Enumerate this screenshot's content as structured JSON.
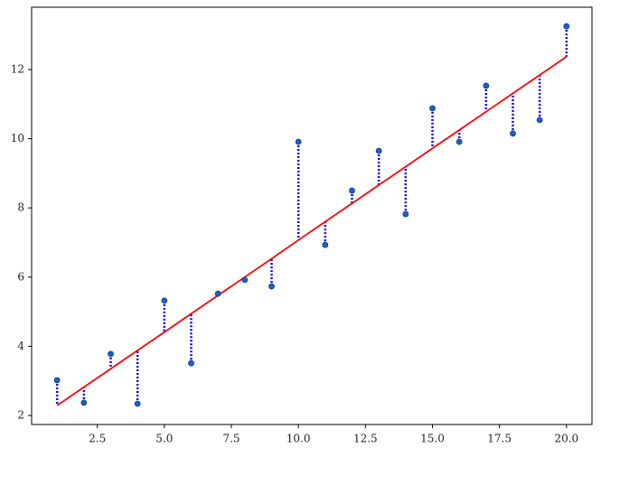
{
  "chart_data": {
    "type": "scatter",
    "x": [
      1,
      2,
      3,
      4,
      5,
      6,
      7,
      8,
      9,
      10,
      11,
      12,
      13,
      14,
      15,
      16,
      17,
      18,
      19,
      20
    ],
    "series": [
      {
        "color": "#1f5fbf",
        "values": [
          3.02,
          2.37,
          3.78,
          2.34,
          5.32,
          3.51,
          5.52,
          5.92,
          5.73,
          9.91,
          6.93,
          8.5,
          9.65,
          7.82,
          10.88,
          9.91,
          11.53,
          10.15,
          10.54,
          13.25
        ]
      },
      {
        "color": "#ff0000",
        "values": [
          2.29,
          2.82,
          3.35,
          3.88,
          4.41,
          4.94,
          5.47,
          6.0,
          6.53,
          7.07,
          7.6,
          8.13,
          8.66,
          9.19,
          9.72,
          10.25,
          10.78,
          11.31,
          11.84,
          12.37
        ]
      }
    ],
    "residual_color": "#0000ff",
    "xlim": [
      0.05,
      20.95
    ],
    "ylim": [
      1.74,
      13.8
    ],
    "xticks": [
      {
        "value": 2.5,
        "label": "2.5"
      },
      {
        "value": 5,
        "label": "5.0"
      },
      {
        "value": 7.5,
        "label": "7.5"
      },
      {
        "value": 10,
        "label": "10.0"
      },
      {
        "value": 12.5,
        "label": "12.5"
      },
      {
        "value": 15,
        "label": "15.0"
      },
      {
        "value": 17.5,
        "label": "17.5"
      },
      {
        "value": 20,
        "label": "20.0"
      }
    ],
    "yticks": [
      2,
      4,
      6,
      8,
      10,
      12
    ]
  }
}
